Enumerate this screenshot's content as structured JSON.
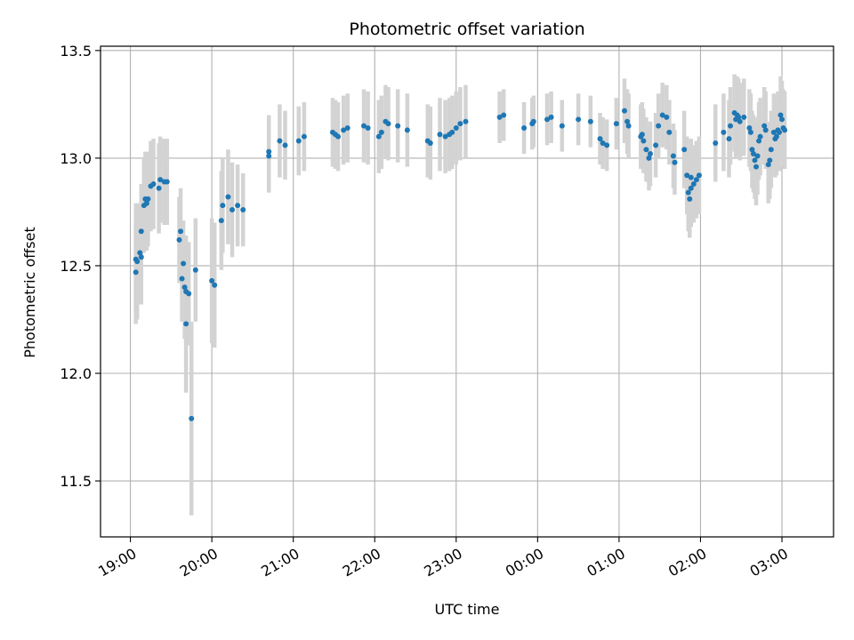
{
  "chart_data": {
    "type": "scatter",
    "title": "Photometric offset variation",
    "xlabel": "UTC time",
    "ylabel": "Photometric offset",
    "x_ticks": [
      "19:00",
      "20:00",
      "21:00",
      "22:00",
      "23:00",
      "00:00",
      "01:00",
      "02:00",
      "03:00"
    ],
    "y_ticks": [
      "11.5",
      "12.0",
      "12.5",
      "13.0",
      "13.5"
    ],
    "xlim": [
      "18:38",
      "03:38"
    ],
    "ylim": [
      11.24,
      13.52
    ],
    "grid": true,
    "legend": "none",
    "colors": {
      "marker": "#1f77b4",
      "errorbar": "#d3d3d3",
      "grid": "#b0b0b0"
    },
    "series": [
      {
        "points": [
          {
            "t": "19:04",
            "y": 12.53,
            "err": 0.26
          },
          {
            "t": "19:04",
            "y": 12.47,
            "err": 0.24
          },
          {
            "t": "19:05",
            "y": 12.52,
            "err": 0.27
          },
          {
            "t": "19:07",
            "y": 12.56,
            "err": 0.22
          },
          {
            "t": "19:08",
            "y": 12.54,
            "err": 0.22
          },
          {
            "t": "19:08",
            "y": 12.66,
            "err": 0.22
          },
          {
            "t": "19:10",
            "y": 12.78,
            "err": 0.22
          },
          {
            "t": "19:11",
            "y": 12.81,
            "err": 0.22
          },
          {
            "t": "19:12",
            "y": 12.79,
            "err": 0.22
          },
          {
            "t": "19:13",
            "y": 12.81,
            "err": 0.22
          },
          {
            "t": "19:15",
            "y": 12.87,
            "err": 0.21
          },
          {
            "t": "19:17",
            "y": 12.88,
            "err": 0.21
          },
          {
            "t": "19:21",
            "y": 12.86,
            "err": 0.21
          },
          {
            "t": "19:22",
            "y": 12.9,
            "err": 0.2
          },
          {
            "t": "19:25",
            "y": 12.89,
            "err": 0.2
          },
          {
            "t": "19:27",
            "y": 12.89,
            "err": 0.2
          },
          {
            "t": "19:36",
            "y": 12.62,
            "err": 0.2
          },
          {
            "t": "19:37",
            "y": 12.66,
            "err": 0.2
          },
          {
            "t": "19:38",
            "y": 12.44,
            "err": 0.2
          },
          {
            "t": "19:39",
            "y": 12.51,
            "err": 0.2
          },
          {
            "t": "19:40",
            "y": 12.4,
            "err": 0.24
          },
          {
            "t": "19:41",
            "y": 12.23,
            "err": 0.32
          },
          {
            "t": "19:41",
            "y": 12.38,
            "err": 0.26
          },
          {
            "t": "19:43",
            "y": 12.37,
            "err": 0.24
          },
          {
            "t": "19:45",
            "y": 11.79,
            "err": 0.45
          },
          {
            "t": "19:48",
            "y": 12.48,
            "err": 0.24
          },
          {
            "t": "20:00",
            "y": 12.43,
            "err": 0.29
          },
          {
            "t": "20:02",
            "y": 12.41,
            "err": 0.29
          },
          {
            "t": "20:07",
            "y": 12.71,
            "err": 0.23
          },
          {
            "t": "20:08",
            "y": 12.78,
            "err": 0.22
          },
          {
            "t": "20:12",
            "y": 12.82,
            "err": 0.22
          },
          {
            "t": "20:15",
            "y": 12.76,
            "err": 0.22
          },
          {
            "t": "20:19",
            "y": 12.78,
            "err": 0.19
          },
          {
            "t": "20:23",
            "y": 12.76,
            "err": 0.17
          },
          {
            "t": "20:42",
            "y": 13.03,
            "err": 0.17
          },
          {
            "t": "20:42",
            "y": 13.01,
            "err": 0.17
          },
          {
            "t": "20:50",
            "y": 13.08,
            "err": 0.17
          },
          {
            "t": "20:54",
            "y": 13.06,
            "err": 0.16
          },
          {
            "t": "21:04",
            "y": 13.08,
            "err": 0.16
          },
          {
            "t": "21:08",
            "y": 13.1,
            "err": 0.16
          },
          {
            "t": "21:29",
            "y": 13.12,
            "err": 0.16
          },
          {
            "t": "21:31",
            "y": 13.11,
            "err": 0.16
          },
          {
            "t": "21:33",
            "y": 13.1,
            "err": 0.16
          },
          {
            "t": "21:37",
            "y": 13.13,
            "err": 0.16
          },
          {
            "t": "21:40",
            "y": 13.14,
            "err": 0.16
          },
          {
            "t": "21:52",
            "y": 13.15,
            "err": 0.17
          },
          {
            "t": "21:55",
            "y": 13.14,
            "err": 0.17
          },
          {
            "t": "22:03",
            "y": 13.1,
            "err": 0.17
          },
          {
            "t": "22:05",
            "y": 13.12,
            "err": 0.17
          },
          {
            "t": "22:08",
            "y": 13.17,
            "err": 0.17
          },
          {
            "t": "22:10",
            "y": 13.16,
            "err": 0.17
          },
          {
            "t": "22:17",
            "y": 13.15,
            "err": 0.17
          },
          {
            "t": "22:24",
            "y": 13.13,
            "err": 0.17
          },
          {
            "t": "22:39",
            "y": 13.08,
            "err": 0.17
          },
          {
            "t": "22:41",
            "y": 13.07,
            "err": 0.17
          },
          {
            "t": "22:48",
            "y": 13.11,
            "err": 0.17
          },
          {
            "t": "22:52",
            "y": 13.1,
            "err": 0.17
          },
          {
            "t": "22:55",
            "y": 13.11,
            "err": 0.17
          },
          {
            "t": "22:57",
            "y": 13.12,
            "err": 0.17
          },
          {
            "t": "23:00",
            "y": 13.14,
            "err": 0.17
          },
          {
            "t": "23:03",
            "y": 13.16,
            "err": 0.17
          },
          {
            "t": "23:07",
            "y": 13.17,
            "err": 0.17
          },
          {
            "t": "23:32",
            "y": 13.19,
            "err": 0.12
          },
          {
            "t": "23:35",
            "y": 13.2,
            "err": 0.12
          },
          {
            "t": "23:50",
            "y": 13.14,
            "err": 0.12
          },
          {
            "t": "23:56",
            "y": 13.16,
            "err": 0.12
          },
          {
            "t": "23:57",
            "y": 13.17,
            "err": 0.12
          },
          {
            "t": "00:07",
            "y": 13.18,
            "err": 0.12
          },
          {
            "t": "00:10",
            "y": 13.19,
            "err": 0.12
          },
          {
            "t": "00:18",
            "y": 13.15,
            "err": 0.12
          },
          {
            "t": "00:30",
            "y": 13.18,
            "err": 0.12
          },
          {
            "t": "00:39",
            "y": 13.17,
            "err": 0.12
          },
          {
            "t": "00:46",
            "y": 13.09,
            "err": 0.12
          },
          {
            "t": "00:48",
            "y": 13.07,
            "err": 0.12
          },
          {
            "t": "00:51",
            "y": 13.06,
            "err": 0.12
          },
          {
            "t": "00:58",
            "y": 13.16,
            "err": 0.12
          },
          {
            "t": "01:04",
            "y": 13.22,
            "err": 0.15
          },
          {
            "t": "01:06",
            "y": 13.17,
            "err": 0.15
          },
          {
            "t": "01:07",
            "y": 13.15,
            "err": 0.15
          },
          {
            "t": "01:16",
            "y": 13.1,
            "err": 0.15
          },
          {
            "t": "01:17",
            "y": 13.11,
            "err": 0.15
          },
          {
            "t": "01:18",
            "y": 13.08,
            "err": 0.15
          },
          {
            "t": "01:20",
            "y": 13.04,
            "err": 0.15
          },
          {
            "t": "01:22",
            "y": 13.0,
            "err": 0.15
          },
          {
            "t": "01:23",
            "y": 13.02,
            "err": 0.15
          },
          {
            "t": "01:27",
            "y": 13.06,
            "err": 0.15
          },
          {
            "t": "01:29",
            "y": 13.15,
            "err": 0.15
          },
          {
            "t": "01:32",
            "y": 13.2,
            "err": 0.15
          },
          {
            "t": "01:35",
            "y": 13.19,
            "err": 0.15
          },
          {
            "t": "01:37",
            "y": 13.12,
            "err": 0.15
          },
          {
            "t": "01:40",
            "y": 13.01,
            "err": 0.15
          },
          {
            "t": "01:41",
            "y": 12.98,
            "err": 0.15
          },
          {
            "t": "01:48",
            "y": 13.04,
            "err": 0.18
          },
          {
            "t": "01:50",
            "y": 12.92,
            "err": 0.18
          },
          {
            "t": "01:51",
            "y": 12.84,
            "err": 0.18
          },
          {
            "t": "01:52",
            "y": 12.81,
            "err": 0.18
          },
          {
            "t": "01:53",
            "y": 12.86,
            "err": 0.18
          },
          {
            "t": "01:53",
            "y": 12.91,
            "err": 0.18
          },
          {
            "t": "01:55",
            "y": 12.88,
            "err": 0.18
          },
          {
            "t": "01:57",
            "y": 12.9,
            "err": 0.18
          },
          {
            "t": "01:59",
            "y": 12.92,
            "err": 0.18
          },
          {
            "t": "02:11",
            "y": 13.07,
            "err": 0.18
          },
          {
            "t": "02:17",
            "y": 13.12,
            "err": 0.18
          },
          {
            "t": "02:21",
            "y": 13.09,
            "err": 0.18
          },
          {
            "t": "02:22",
            "y": 13.15,
            "err": 0.18
          },
          {
            "t": "02:25",
            "y": 13.21,
            "err": 0.18
          },
          {
            "t": "02:26",
            "y": 13.18,
            "err": 0.18
          },
          {
            "t": "02:27",
            "y": 13.2,
            "err": 0.18
          },
          {
            "t": "02:28",
            "y": 13.19,
            "err": 0.18
          },
          {
            "t": "02:29",
            "y": 13.17,
            "err": 0.18
          },
          {
            "t": "02:32",
            "y": 13.19,
            "err": 0.18
          },
          {
            "t": "02:36",
            "y": 13.14,
            "err": 0.18
          },
          {
            "t": "02:37",
            "y": 13.12,
            "err": 0.18
          },
          {
            "t": "02:38",
            "y": 13.04,
            "err": 0.18
          },
          {
            "t": "02:39",
            "y": 13.02,
            "err": 0.18
          },
          {
            "t": "02:40",
            "y": 12.99,
            "err": 0.18
          },
          {
            "t": "02:41",
            "y": 12.96,
            "err": 0.18
          },
          {
            "t": "02:42",
            "y": 13.01,
            "err": 0.18
          },
          {
            "t": "02:43",
            "y": 13.08,
            "err": 0.18
          },
          {
            "t": "02:44",
            "y": 13.1,
            "err": 0.18
          },
          {
            "t": "02:47",
            "y": 13.15,
            "err": 0.18
          },
          {
            "t": "02:48",
            "y": 13.13,
            "err": 0.18
          },
          {
            "t": "02:50",
            "y": 12.97,
            "err": 0.18
          },
          {
            "t": "02:51",
            "y": 12.99,
            "err": 0.18
          },
          {
            "t": "02:52",
            "y": 13.04,
            "err": 0.18
          },
          {
            "t": "02:54",
            "y": 13.12,
            "err": 0.18
          },
          {
            "t": "02:55",
            "y": 13.09,
            "err": 0.18
          },
          {
            "t": "02:56",
            "y": 13.1,
            "err": 0.18
          },
          {
            "t": "02:57",
            "y": 13.13,
            "err": 0.18
          },
          {
            "t": "02:58",
            "y": 13.12,
            "err": 0.18
          },
          {
            "t": "02:59",
            "y": 13.2,
            "err": 0.18
          },
          {
            "t": "03:00",
            "y": 13.18,
            "err": 0.18
          },
          {
            "t": "03:01",
            "y": 13.14,
            "err": 0.18
          },
          {
            "t": "03:02",
            "y": 13.13,
            "err": 0.18
          }
        ]
      }
    ]
  }
}
